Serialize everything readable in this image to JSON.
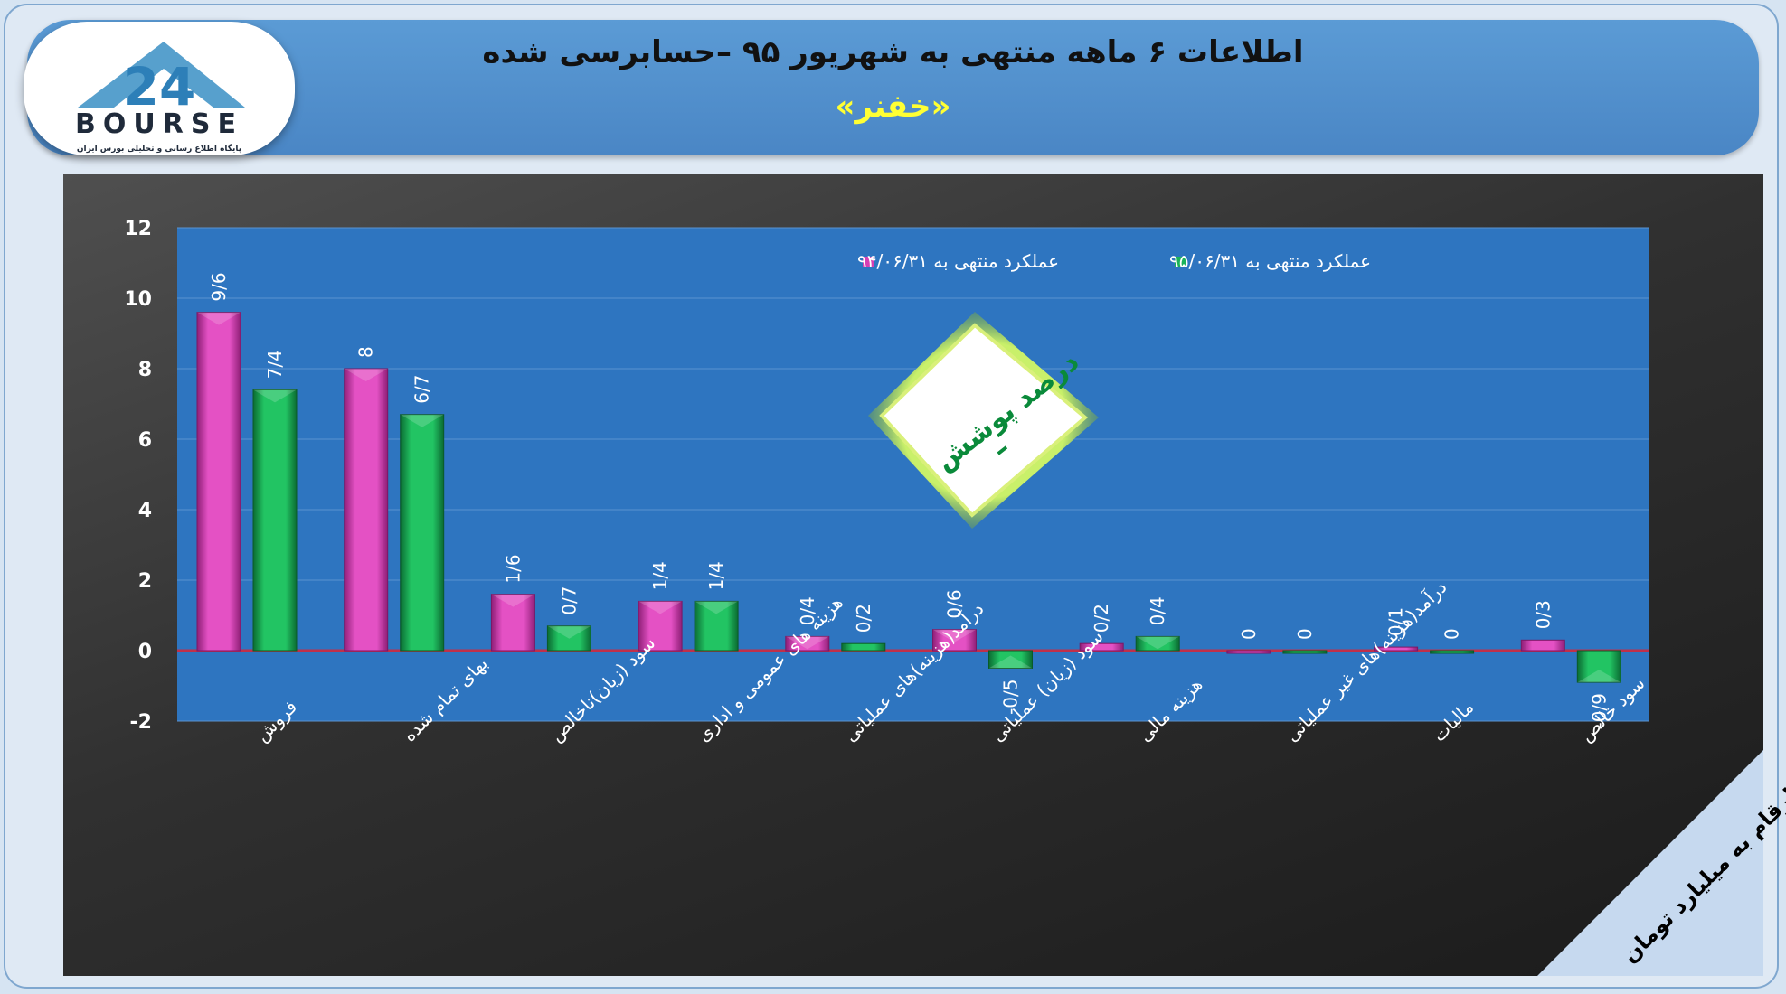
{
  "header": {
    "title": "اطلاعات ۶ ماهه منتهی به شهریور ۹۵ –حسابرسی شده",
    "subtitle": "«خفنر»"
  },
  "logo": {
    "mark": "24",
    "word": "BOURSE",
    "tagline": "پایگاه اطلاع رسانی و تحلیلی بورس ایران"
  },
  "badge": {
    "label": "درصد پوشش",
    "value": "–"
  },
  "corner_note": "ارقام به میلیارد تومان",
  "colors": {
    "series1": "#d63fb4",
    "series2": "#1bb35a",
    "plot_bg": "#2e75c0",
    "header_bg": "#5b9bd5",
    "subtitle": "#ffff33"
  },
  "chart_data": {
    "type": "bar",
    "categories": [
      "فروش",
      "بهای تمام شده",
      "سود (زیان)ناخالص",
      "هزینه های عمومی و اداری",
      "درآمد(هزینه)های عملیاتی",
      "سود (زیان) عملیاتی",
      "هزینه مالی",
      "درآمد(هزینه)های غیر عملیاتی",
      "مالیات",
      "سود خالص"
    ],
    "series": [
      {
        "name": "عملکرد منتهی به ۹۴/۰۶/۳۱",
        "values": [
          9.6,
          8,
          1.6,
          1.4,
          0.4,
          0.6,
          0.2,
          0,
          0.1,
          0.3
        ],
        "labels": [
          "9/6",
          "8",
          "1/6",
          "1/4",
          "0/4",
          "0/6",
          "0/2",
          "0",
          "0/1",
          "0/3"
        ]
      },
      {
        "name": "عملکرد منتهی به ۹۵/۰۶/۳۱",
        "values": [
          7.4,
          6.7,
          0.7,
          1.4,
          0.2,
          -0.5,
          0.4,
          0,
          0,
          -0.9
        ],
        "labels": [
          "7/4",
          "6/7",
          "0/7",
          "1/4",
          "0/2",
          "-0/5",
          "0/4",
          "0",
          "0",
          "-0/9"
        ]
      }
    ],
    "ylim": [
      -2,
      12
    ],
    "yticks": [
      12,
      10,
      8,
      6,
      4,
      2,
      0,
      -2
    ],
    "grid": true,
    "legend": "top"
  }
}
